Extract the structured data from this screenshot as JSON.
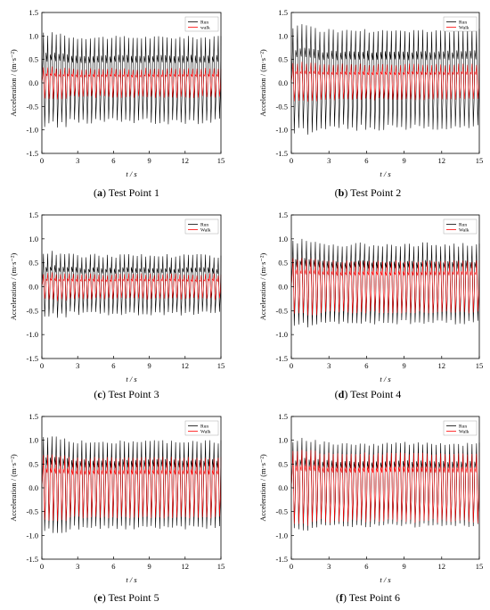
{
  "chart_data": [
    {
      "type": "line",
      "caption": {
        "letter": "a",
        "text": " Test Point 1"
      },
      "x": {
        "min": 0,
        "max": 15,
        "ticks": [
          "0",
          "3",
          "6",
          "9",
          "12",
          "15"
        ],
        "label": "t / s"
      },
      "y": {
        "min": -1.5,
        "max": 1.5,
        "ticks": [
          "-1.5",
          "-1.0",
          "-0.5",
          "0.0",
          "0.5",
          "1.0",
          "1.5"
        ],
        "label": "Acceleration / (m·s⁻²)"
      },
      "legend": {
        "placement": "top-right"
      },
      "series": [
        {
          "name": "Run",
          "color": "#000000",
          "cycles": 42,
          "peak_max": 1.08,
          "peak_min": -0.95,
          "trough_typ": -0.8,
          "peak_typ": 1.0
        },
        {
          "name": "walk",
          "color": "#ff0000",
          "cycles": 42,
          "peak_max": 0.35,
          "peak_min": -0.35,
          "trough_typ": -0.3,
          "peak_typ": 0.3
        }
      ]
    },
    {
      "type": "line",
      "caption": {
        "letter": "b",
        "text": " Test Point 2"
      },
      "x": {
        "min": 0,
        "max": 15,
        "ticks": [
          "0",
          "3",
          "6",
          "9",
          "12",
          "15"
        ],
        "label": "t / s"
      },
      "y": {
        "min": -1.5,
        "max": 1.5,
        "ticks": [
          "-1.5",
          "-1.0",
          "-0.5",
          "0.0",
          "0.5",
          "1.0",
          "1.5"
        ],
        "label": "Acceleration / (m·s⁻²)"
      },
      "legend": {
        "placement": "top-right"
      },
      "series": [
        {
          "name": "Run",
          "color": "#000000",
          "cycles": 42,
          "peak_max": 1.25,
          "peak_min": -1.1,
          "trough_typ": -0.95,
          "peak_typ": 1.15
        },
        {
          "name": "Walk",
          "color": "#ff0000",
          "cycles": 42,
          "peak_max": 0.45,
          "peak_min": -0.4,
          "trough_typ": -0.35,
          "peak_typ": 0.4
        }
      ]
    },
    {
      "type": "line",
      "caption": {
        "letter": "c",
        "text": " Test Point 3"
      },
      "x": {
        "min": 0,
        "max": 15,
        "ticks": [
          "0",
          "3",
          "6",
          "9",
          "12",
          "15"
        ],
        "label": "t / s"
      },
      "y": {
        "min": -1.5,
        "max": 1.5,
        "ticks": [
          "-1.5",
          "-1.0",
          "-0.5",
          "0.0",
          "0.5",
          "1.0",
          "1.5"
        ],
        "label": "Acceleration / (m·s⁻²)"
      },
      "legend": {
        "placement": "top-right"
      },
      "series": [
        {
          "name": "Run",
          "color": "#000000",
          "cycles": 42,
          "peak_max": 0.75,
          "peak_min": -0.65,
          "trough_typ": -0.55,
          "peak_typ": 0.65
        },
        {
          "name": "Walk",
          "color": "#ff0000",
          "cycles": 42,
          "peak_max": 0.3,
          "peak_min": -0.3,
          "trough_typ": -0.25,
          "peak_typ": 0.25
        }
      ]
    },
    {
      "type": "line",
      "caption": {
        "letter": "d",
        "text": " Test Point 4"
      },
      "x": {
        "min": 0,
        "max": 15,
        "ticks": [
          "0",
          "3",
          "6",
          "9",
          "12",
          "15"
        ],
        "label": "t / s"
      },
      "y": {
        "min": -1.5,
        "max": 1.5,
        "ticks": [
          "-1.5",
          "-1.0",
          "-0.5",
          "0.0",
          "0.5",
          "1.0",
          "1.5"
        ],
        "label": "Acceleration / (m·s⁻²)"
      },
      "legend": {
        "placement": "top-right"
      },
      "series": [
        {
          "name": "Run",
          "color": "#000000",
          "cycles": 42,
          "peak_max": 1.0,
          "peak_min": -0.85,
          "trough_typ": -0.75,
          "peak_typ": 0.9
        },
        {
          "name": "Walk",
          "color": "#ff0000",
          "cycles": 42,
          "peak_max": 0.6,
          "peak_min": -0.6,
          "trough_typ": -0.55,
          "peak_typ": 0.55
        }
      ]
    },
    {
      "type": "line",
      "caption": {
        "letter": "e",
        "text": " Test Point 5"
      },
      "x": {
        "min": 0,
        "max": 15,
        "ticks": [
          "0",
          "3",
          "6",
          "9",
          "12",
          "15"
        ],
        "label": "t / s"
      },
      "y": {
        "min": -1.5,
        "max": 1.5,
        "ticks": [
          "-1.5",
          "-1.0",
          "-0.5",
          "0.0",
          "0.5",
          "1.0",
          "1.5"
        ],
        "label": "Acceleration / (m·s⁻²)"
      },
      "legend": {
        "placement": "top-right"
      },
      "series": [
        {
          "name": "Run",
          "color": "#000000",
          "cycles": 42,
          "peak_max": 1.08,
          "peak_min": -0.95,
          "trough_typ": -0.85,
          "peak_typ": 1.0
        },
        {
          "name": "Walk",
          "color": "#ff0000",
          "cycles": 42,
          "peak_max": 0.7,
          "peak_min": -0.7,
          "trough_typ": -0.65,
          "peak_typ": 0.65
        }
      ]
    },
    {
      "type": "line",
      "caption": {
        "letter": "f",
        "text": " Test Point 6"
      },
      "x": {
        "min": 0,
        "max": 15,
        "ticks": [
          "0",
          "3",
          "6",
          "9",
          "12",
          "15"
        ],
        "label": "t / s"
      },
      "y": {
        "min": -1.5,
        "max": 1.5,
        "ticks": [
          "-1.5",
          "-1.0",
          "-0.5",
          "0.0",
          "0.5",
          "1.0",
          "1.5"
        ],
        "label": "Acceleration / (m·s⁻²)"
      },
      "legend": {
        "placement": "top-right"
      },
      "series": [
        {
          "name": "Run",
          "color": "#000000",
          "cycles": 42,
          "peak_max": 1.05,
          "peak_min": -0.9,
          "trough_typ": -0.8,
          "peak_typ": 0.95
        },
        {
          "name": "Walk",
          "color": "#ff0000",
          "cycles": 42,
          "peak_max": 0.8,
          "peak_min": -0.8,
          "trough_typ": -0.7,
          "peak_typ": 0.75
        }
      ]
    }
  ]
}
